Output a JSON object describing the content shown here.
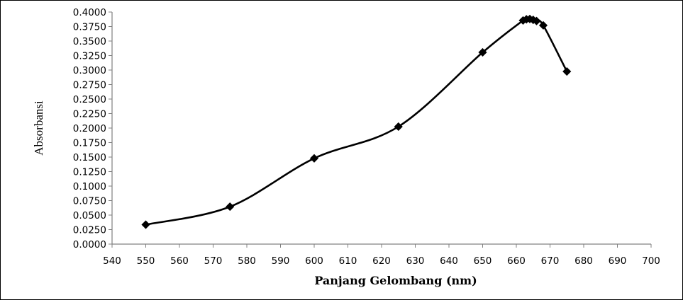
{
  "chart_data": {
    "type": "scatter",
    "title": "",
    "xlabel": "Panjang Gelombang (nm)",
    "ylabel": "Absorbansi",
    "xlim": [
      540,
      700
    ],
    "ylim": [
      0.0,
      0.4
    ],
    "x_ticks": [
      540,
      550,
      560,
      570,
      580,
      590,
      600,
      610,
      620,
      630,
      640,
      650,
      660,
      670,
      680,
      690,
      700
    ],
    "x_tick_labels": [
      "540",
      "550",
      "560",
      "570",
      "580",
      "590",
      "600",
      "610",
      "620",
      "630",
      "640",
      "650",
      "660",
      "670",
      "680",
      "690",
      "700"
    ],
    "y_ticks": [
      0.0,
      0.025,
      0.05,
      0.075,
      0.1,
      0.125,
      0.15,
      0.175,
      0.2,
      0.225,
      0.25,
      0.275,
      0.3,
      0.325,
      0.35,
      0.375,
      0.4
    ],
    "y_tick_labels": [
      "0.0000",
      "0.0250",
      "0.0500",
      "0.0750",
      "0.1000",
      "0.1250",
      "0.1500",
      "0.1750",
      "0.2000",
      "0.2250",
      "0.2500",
      "0.2750",
      "0.3000",
      "0.3250",
      "0.3500",
      "0.3750",
      "0.4000"
    ],
    "grid": false,
    "legend": "none",
    "line_style": "smooth",
    "marker": "diamond",
    "color": "#000000",
    "series": [
      {
        "x": [
          550,
          575,
          600,
          625,
          650,
          662,
          663,
          664,
          665,
          666,
          668,
          675
        ],
        "y": [
          0.0335,
          0.0645,
          0.1478,
          0.2025,
          0.3305,
          0.3855,
          0.3875,
          0.388,
          0.3865,
          0.3845,
          0.377,
          0.2975
        ]
      }
    ]
  }
}
